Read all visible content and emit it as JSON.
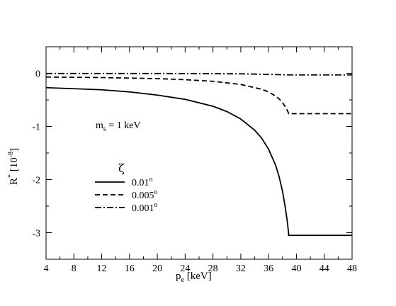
{
  "chart_data": {
    "type": "line",
    "xlabel": {
      "main": "p",
      "sub": "e",
      "unit": " [keV]"
    },
    "ylabel": {
      "main": "R",
      "sup": "*",
      "unit_open": " [10",
      "unit_sup": "-8",
      "unit_close": "]"
    },
    "xlim": [
      4,
      48
    ],
    "ylim": [
      -3.5,
      0.5
    ],
    "xticks": [
      4,
      8,
      12,
      16,
      20,
      24,
      28,
      32,
      36,
      40,
      44,
      48
    ],
    "yticks": [
      0,
      -1,
      -2,
      -3
    ],
    "annotation": {
      "main": "m",
      "sub": "s",
      "rest": " = 1 keV"
    },
    "legend_title": "ζ",
    "legend_position": "center-left",
    "grid": false,
    "series": [
      {
        "name": "0.01",
        "name_sup": "o",
        "style": "solid",
        "color": "#000000",
        "x": [
          4,
          8,
          12,
          16,
          20,
          24,
          28,
          30,
          32,
          34,
          35,
          36,
          37,
          37.5,
          38,
          38.4,
          38.7,
          38.9,
          38.9,
          48
        ],
        "y": [
          -0.27,
          -0.29,
          -0.31,
          -0.35,
          -0.41,
          -0.49,
          -0.62,
          -0.72,
          -0.86,
          -1.07,
          -1.22,
          -1.43,
          -1.73,
          -1.94,
          -2.22,
          -2.53,
          -2.8,
          -3.05,
          -3.05,
          -3.05
        ]
      },
      {
        "name": "0.005",
        "name_sup": "o",
        "style": "dashed",
        "color": "#000000",
        "x": [
          4,
          8,
          12,
          16,
          20,
          24,
          28,
          30,
          32,
          34,
          35,
          36,
          37,
          37.5,
          38,
          38.4,
          38.7,
          38.9,
          38.9,
          48
        ],
        "y": [
          -0.07,
          -0.075,
          -0.08,
          -0.09,
          -0.1,
          -0.12,
          -0.15,
          -0.18,
          -0.21,
          -0.27,
          -0.3,
          -0.35,
          -0.43,
          -0.48,
          -0.55,
          -0.63,
          -0.7,
          -0.76,
          -0.76,
          -0.76
        ]
      },
      {
        "name": "0.001",
        "name_sup": "o",
        "style": "dashdot",
        "color": "#000000",
        "x": [
          4,
          12,
          20,
          28,
          32,
          36,
          38.9,
          48
        ],
        "y": [
          -0.003,
          -0.003,
          -0.004,
          -0.006,
          -0.01,
          -0.02,
          -0.03,
          -0.03
        ]
      }
    ]
  }
}
